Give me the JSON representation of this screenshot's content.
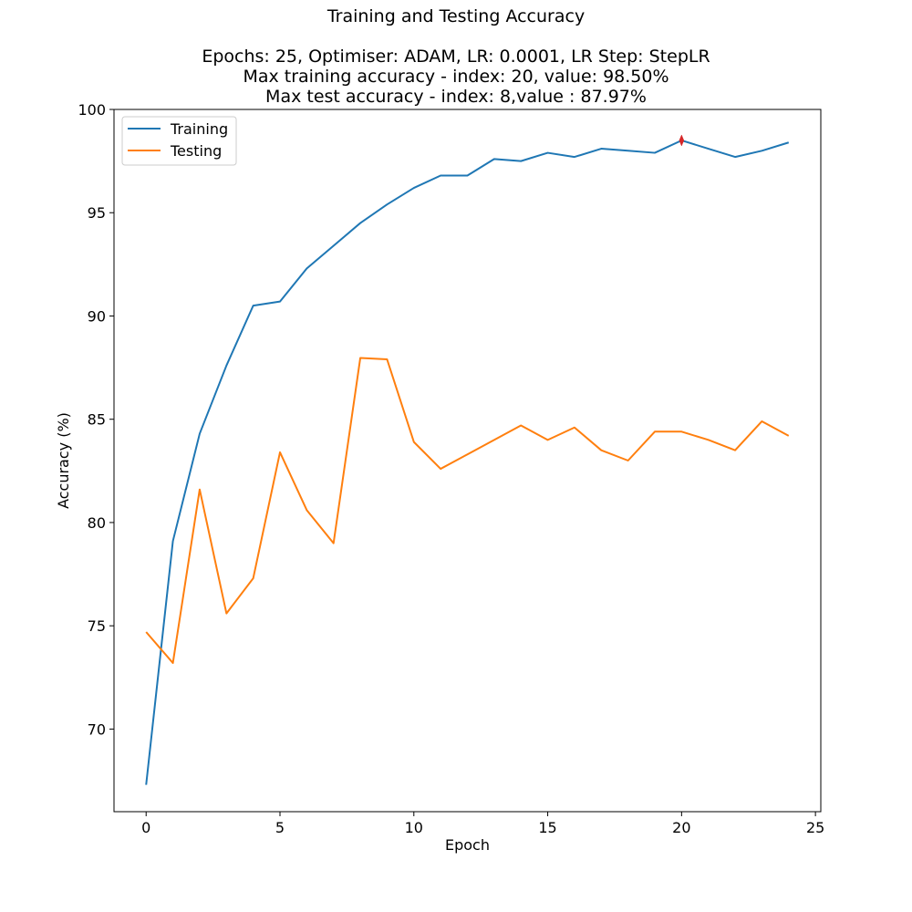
{
  "chart_data": {
    "type": "line",
    "title": "Training and Testing Accuracy",
    "subtitle_lines": [
      "Epochs: 25, Optimiser: ADAM, LR: 0.0001, LR Step: StepLR",
      "Max training accuracy - index: 20, value: 98.50%",
      "Max test accuracy - index: 8,value : 87.97%"
    ],
    "xlabel": "Epoch",
    "ylabel": "Accuracy (%)",
    "xlim": [
      -1.2,
      25.2
    ],
    "ylim": [
      66.0,
      100.0
    ],
    "xticks": [
      0,
      5,
      10,
      15,
      20,
      25
    ],
    "yticks": [
      70,
      75,
      80,
      85,
      90,
      95,
      100
    ],
    "grid": false,
    "legend_position": "top-left",
    "x": [
      0,
      1,
      2,
      3,
      4,
      5,
      6,
      7,
      8,
      9,
      10,
      11,
      12,
      13,
      14,
      15,
      16,
      17,
      18,
      19,
      20,
      21,
      22,
      23,
      24
    ],
    "series": [
      {
        "name": "Training",
        "color": "#1f77b4",
        "values": [
          67.3,
          79.1,
          84.3,
          87.6,
          90.5,
          90.7,
          92.3,
          93.4,
          94.5,
          95.4,
          96.2,
          96.8,
          96.8,
          97.6,
          97.5,
          97.9,
          97.7,
          98.1,
          98.0,
          97.9,
          98.5,
          98.1,
          97.7,
          98.0,
          98.4
        ]
      },
      {
        "name": "Testing",
        "color": "#ff7f0e",
        "values": [
          74.7,
          73.2,
          81.6,
          75.6,
          77.3,
          83.4,
          80.6,
          79.0,
          87.97,
          87.9,
          83.9,
          82.6,
          83.3,
          84.0,
          84.7,
          84.0,
          84.6,
          83.5,
          83.0,
          84.4,
          84.4,
          84.0,
          83.5,
          84.9,
          84.2
        ]
      }
    ],
    "max_marker": {
      "x": 20,
      "y": 98.5,
      "color": "#d62728"
    }
  }
}
